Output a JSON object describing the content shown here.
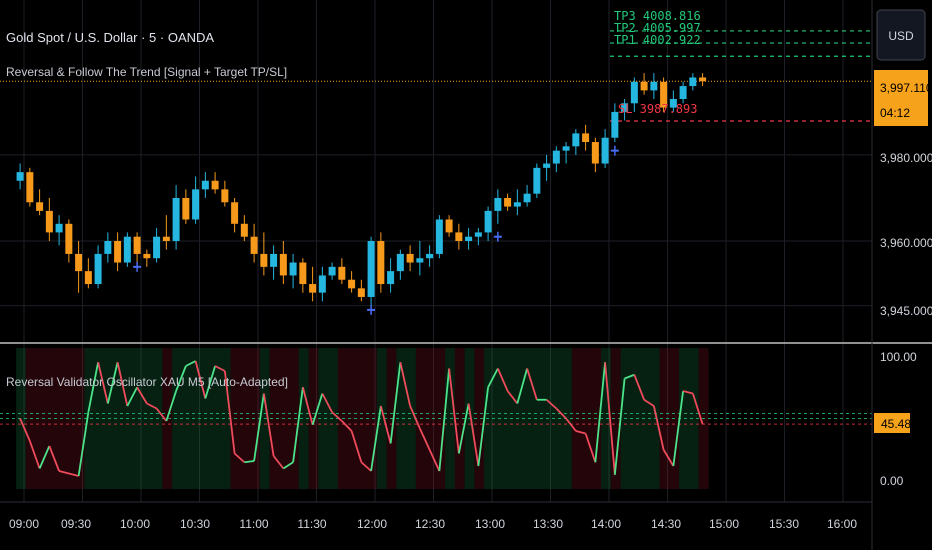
{
  "header": {
    "symbol_title": "Gold Spot / U.S. Dollar · 5 · OANDA",
    "indicator_title": "Reversal & Follow The Trend [Signal + Target TP/SL]"
  },
  "price_axis": {
    "currency_button": "USD",
    "ticks": [
      "3,980.000",
      "3,960.000",
      "3,945.000"
    ],
    "current_price": "3,997.110",
    "countdown": "04:12"
  },
  "targets": {
    "tp3": "TP3 4008.816",
    "tp2": "TP2 4005.997",
    "tp1": "TP1 4002.922",
    "sl": "SL 3987.893"
  },
  "oscillator": {
    "title": "Reversal Validator Oscillator XAU M5 [Auto-Adapted]",
    "ticks": [
      "100.00",
      "0.00"
    ],
    "current_value": "45.48"
  },
  "time_axis": {
    "labels": [
      "09:00",
      "09:30",
      "10:00",
      "10:30",
      "11:00",
      "11:30",
      "12:00",
      "12:30",
      "13:00",
      "13:30",
      "14:00",
      "14:30",
      "15:00",
      "15:30",
      "16:00"
    ]
  },
  "colors": {
    "bull": "#26b7e0",
    "bear": "#f79a1b",
    "tp": "#22c97a",
    "sl": "#f23645",
    "osc_up": "#4ce38a",
    "osc_down": "#ef4b5c",
    "price_label_bg": "#f7a21b",
    "signal": "#4a6cf7"
  },
  "chart_data": {
    "type": "candlestick",
    "interval": "5m",
    "price_ylim": [
      3937,
      4016
    ],
    "candles": [
      {
        "t": "08:58",
        "o": 3974,
        "h": 3978,
        "l": 3972,
        "c": 3976
      },
      {
        "t": "09:03",
        "o": 3976,
        "h": 3977,
        "l": 3968,
        "c": 3969
      },
      {
        "t": "09:08",
        "o": 3969,
        "h": 3972,
        "l": 3966,
        "c": 3967
      },
      {
        "t": "09:13",
        "o": 3967,
        "h": 3970,
        "l": 3960,
        "c": 3962
      },
      {
        "t": "09:18",
        "o": 3962,
        "h": 3966,
        "l": 3959,
        "c": 3964
      },
      {
        "t": "09:23",
        "o": 3964,
        "h": 3965,
        "l": 3955,
        "c": 3957
      },
      {
        "t": "09:28",
        "o": 3957,
        "h": 3960,
        "l": 3948,
        "c": 3953
      },
      {
        "t": "09:33",
        "o": 3953,
        "h": 3956,
        "l": 3949,
        "c": 3950
      },
      {
        "t": "09:38",
        "o": 3950,
        "h": 3959,
        "l": 3949,
        "c": 3957
      },
      {
        "t": "09:43",
        "o": 3957,
        "h": 3962,
        "l": 3955,
        "c": 3960
      },
      {
        "t": "09:48",
        "o": 3960,
        "h": 3962,
        "l": 3953,
        "c": 3955
      },
      {
        "t": "09:53",
        "o": 3955,
        "h": 3962,
        "l": 3954,
        "c": 3961
      },
      {
        "t": "09:58",
        "o": 3961,
        "h": 3962,
        "l": 3954,
        "c": 3957
      },
      {
        "t": "10:03",
        "o": 3957,
        "h": 3958,
        "l": 3954,
        "c": 3956
      },
      {
        "t": "10:08",
        "o": 3956,
        "h": 3963,
        "l": 3955,
        "c": 3961
      },
      {
        "t": "10:13",
        "o": 3961,
        "h": 3966,
        "l": 3958,
        "c": 3960
      },
      {
        "t": "10:18",
        "o": 3960,
        "h": 3973,
        "l": 3958,
        "c": 3970
      },
      {
        "t": "10:23",
        "o": 3970,
        "h": 3972,
        "l": 3964,
        "c": 3965
      },
      {
        "t": "10:28",
        "o": 3965,
        "h": 3975,
        "l": 3964,
        "c": 3972
      },
      {
        "t": "10:33",
        "o": 3972,
        "h": 3976,
        "l": 3970,
        "c": 3974
      },
      {
        "t": "10:38",
        "o": 3974,
        "h": 3976,
        "l": 3971,
        "c": 3972
      },
      {
        "t": "10:43",
        "o": 3972,
        "h": 3974,
        "l": 3968,
        "c": 3969
      },
      {
        "t": "10:48",
        "o": 3969,
        "h": 3970,
        "l": 3962,
        "c": 3964
      },
      {
        "t": "10:53",
        "o": 3964,
        "h": 3966,
        "l": 3960,
        "c": 3961
      },
      {
        "t": "10:58",
        "o": 3961,
        "h": 3964,
        "l": 3955,
        "c": 3957
      },
      {
        "t": "11:03",
        "o": 3957,
        "h": 3962,
        "l": 3952,
        "c": 3954
      },
      {
        "t": "11:08",
        "o": 3954,
        "h": 3959,
        "l": 3951,
        "c": 3957
      },
      {
        "t": "11:13",
        "o": 3957,
        "h": 3960,
        "l": 3950,
        "c": 3952
      },
      {
        "t": "11:18",
        "o": 3952,
        "h": 3957,
        "l": 3949,
        "c": 3955
      },
      {
        "t": "11:23",
        "o": 3955,
        "h": 3956,
        "l": 3948,
        "c": 3950
      },
      {
        "t": "11:28",
        "o": 3950,
        "h": 3954,
        "l": 3946,
        "c": 3948
      },
      {
        "t": "11:33",
        "o": 3948,
        "h": 3954,
        "l": 3946,
        "c": 3952
      },
      {
        "t": "11:38",
        "o": 3952,
        "h": 3955,
        "l": 3951,
        "c": 3954
      },
      {
        "t": "11:43",
        "o": 3954,
        "h": 3956,
        "l": 3950,
        "c": 3951
      },
      {
        "t": "11:48",
        "o": 3951,
        "h": 3953,
        "l": 3948,
        "c": 3949
      },
      {
        "t": "11:53",
        "o": 3949,
        "h": 3951,
        "l": 3946,
        "c": 3947
      },
      {
        "t": "11:58",
        "o": 3947,
        "h": 3961,
        "l": 3945,
        "c": 3960
      },
      {
        "t": "12:03",
        "o": 3960,
        "h": 3962,
        "l": 3948,
        "c": 3950
      },
      {
        "t": "12:08",
        "o": 3950,
        "h": 3956,
        "l": 3948,
        "c": 3953
      },
      {
        "t": "12:13",
        "o": 3953,
        "h": 3958,
        "l": 3951,
        "c": 3957
      },
      {
        "t": "12:18",
        "o": 3957,
        "h": 3959,
        "l": 3953,
        "c": 3955
      },
      {
        "t": "12:23",
        "o": 3955,
        "h": 3960,
        "l": 3952,
        "c": 3956
      },
      {
        "t": "12:28",
        "o": 3956,
        "h": 3959,
        "l": 3954,
        "c": 3957
      },
      {
        "t": "12:33",
        "o": 3957,
        "h": 3966,
        "l": 3956,
        "c": 3965
      },
      {
        "t": "12:38",
        "o": 3965,
        "h": 3966,
        "l": 3961,
        "c": 3962
      },
      {
        "t": "12:43",
        "o": 3962,
        "h": 3964,
        "l": 3958,
        "c": 3960
      },
      {
        "t": "12:48",
        "o": 3960,
        "h": 3963,
        "l": 3958,
        "c": 3961
      },
      {
        "t": "12:53",
        "o": 3961,
        "h": 3963,
        "l": 3959,
        "c": 3962
      },
      {
        "t": "12:58",
        "o": 3962,
        "h": 3968,
        "l": 3960,
        "c": 3967
      },
      {
        "t": "13:03",
        "o": 3967,
        "h": 3972,
        "l": 3964,
        "c": 3970
      },
      {
        "t": "13:08",
        "o": 3970,
        "h": 3971,
        "l": 3967,
        "c": 3968
      },
      {
        "t": "13:13",
        "o": 3968,
        "h": 3972,
        "l": 3966,
        "c": 3969
      },
      {
        "t": "13:18",
        "o": 3969,
        "h": 3973,
        "l": 3968,
        "c": 3971
      },
      {
        "t": "13:23",
        "o": 3971,
        "h": 3978,
        "l": 3970,
        "c": 3977
      },
      {
        "t": "13:28",
        "o": 3977,
        "h": 3980,
        "l": 3974,
        "c": 3978
      },
      {
        "t": "13:33",
        "o": 3978,
        "h": 3982,
        "l": 3976,
        "c": 3981
      },
      {
        "t": "13:38",
        "o": 3981,
        "h": 3983,
        "l": 3978,
        "c": 3982
      },
      {
        "t": "13:43",
        "o": 3982,
        "h": 3986,
        "l": 3980,
        "c": 3985
      },
      {
        "t": "13:48",
        "o": 3985,
        "h": 3987,
        "l": 3981,
        "c": 3983
      },
      {
        "t": "13:53",
        "o": 3983,
        "h": 3984,
        "l": 3976,
        "c": 3978
      },
      {
        "t": "13:58",
        "o": 3978,
        "h": 3986,
        "l": 3977,
        "c": 3984
      },
      {
        "t": "14:03",
        "o": 3984,
        "h": 3992,
        "l": 3983,
        "c": 3990
      },
      {
        "t": "14:08",
        "o": 3990,
        "h": 3993,
        "l": 3988,
        "c": 3992
      },
      {
        "t": "14:13",
        "o": 3992,
        "h": 3998,
        "l": 3990,
        "c": 3997
      },
      {
        "t": "14:18",
        "o": 3997,
        "h": 3999,
        "l": 3994,
        "c": 3995
      },
      {
        "t": "14:23",
        "o": 3995,
        "h": 3999,
        "l": 3993,
        "c": 3997
      },
      {
        "t": "14:28",
        "o": 3997,
        "h": 3998,
        "l": 3990,
        "c": 3991
      },
      {
        "t": "14:33",
        "o": 3991,
        "h": 3995,
        "l": 3990,
        "c": 3993
      },
      {
        "t": "14:38",
        "o": 3993,
        "h": 3997,
        "l": 3992,
        "c": 3996
      },
      {
        "t": "14:43",
        "o": 3996,
        "h": 3999,
        "l": 3995,
        "c": 3998
      },
      {
        "t": "14:48",
        "o": 3998,
        "h": 3999,
        "l": 3996,
        "c": 3997.11
      }
    ],
    "signal_markers": [
      {
        "t": "09:58",
        "price": 3954
      },
      {
        "t": "11:58",
        "price": 3944
      },
      {
        "t": "13:03",
        "price": 3961
      },
      {
        "t": "14:03",
        "price": 3981
      }
    ],
    "horizontal_levels": [
      {
        "label": "TP3",
        "price": 4008.816
      },
      {
        "label": "TP2",
        "price": 4005.997
      },
      {
        "label": "TP1",
        "price": 4002.922
      },
      {
        "label": "SL",
        "price": 3987.893
      },
      {
        "label": "current",
        "price": 3997.11
      }
    ],
    "oscillator": {
      "ylim": [
        0,
        100
      ],
      "levels": [
        45.48,
        50,
        54
      ],
      "values": [
        {
          "t": "08:58",
          "v": 50
        },
        {
          "t": "09:03",
          "v": 32
        },
        {
          "t": "09:08",
          "v": 10
        },
        {
          "t": "09:13",
          "v": 28
        },
        {
          "t": "09:18",
          "v": 8
        },
        {
          "t": "09:23",
          "v": 6
        },
        {
          "t": "09:28",
          "v": 4
        },
        {
          "t": "09:33",
          "v": 55
        },
        {
          "t": "09:38",
          "v": 95
        },
        {
          "t": "09:43",
          "v": 62
        },
        {
          "t": "09:48",
          "v": 95
        },
        {
          "t": "09:53",
          "v": 60
        },
        {
          "t": "09:58",
          "v": 75
        },
        {
          "t": "10:03",
          "v": 62
        },
        {
          "t": "10:08",
          "v": 58
        },
        {
          "t": "10:13",
          "v": 48
        },
        {
          "t": "10:18",
          "v": 72
        },
        {
          "t": "10:23",
          "v": 92
        },
        {
          "t": "10:28",
          "v": 96
        },
        {
          "t": "10:33",
          "v": 66
        },
        {
          "t": "10:38",
          "v": 92
        },
        {
          "t": "10:43",
          "v": 88
        },
        {
          "t": "10:48",
          "v": 22
        },
        {
          "t": "10:53",
          "v": 15
        },
        {
          "t": "10:58",
          "v": 16
        },
        {
          "t": "11:03",
          "v": 70
        },
        {
          "t": "11:08",
          "v": 20
        },
        {
          "t": "11:13",
          "v": 10
        },
        {
          "t": "11:18",
          "v": 15
        },
        {
          "t": "11:23",
          "v": 75
        },
        {
          "t": "11:28",
          "v": 45
        },
        {
          "t": "11:33",
          "v": 70
        },
        {
          "t": "11:38",
          "v": 55
        },
        {
          "t": "11:43",
          "v": 48
        },
        {
          "t": "11:48",
          "v": 40
        },
        {
          "t": "11:53",
          "v": 15
        },
        {
          "t": "11:58",
          "v": 8
        },
        {
          "t": "12:03",
          "v": 60
        },
        {
          "t": "12:08",
          "v": 30
        },
        {
          "t": "12:13",
          "v": 95
        },
        {
          "t": "12:18",
          "v": 60
        },
        {
          "t": "12:23",
          "v": 42
        },
        {
          "t": "12:28",
          "v": 25
        },
        {
          "t": "12:33",
          "v": 8
        },
        {
          "t": "12:38",
          "v": 90
        },
        {
          "t": "12:43",
          "v": 22
        },
        {
          "t": "12:48",
          "v": 62
        },
        {
          "t": "12:53",
          "v": 12
        },
        {
          "t": "12:58",
          "v": 75
        },
        {
          "t": "13:03",
          "v": 90
        },
        {
          "t": "13:08",
          "v": 72
        },
        {
          "t": "13:13",
          "v": 62
        },
        {
          "t": "13:18",
          "v": 90
        },
        {
          "t": "13:23",
          "v": 65
        },
        {
          "t": "13:28",
          "v": 65
        },
        {
          "t": "13:33",
          "v": 58
        },
        {
          "t": "13:38",
          "v": 50
        },
        {
          "t": "13:43",
          "v": 40
        },
        {
          "t": "13:48",
          "v": 38
        },
        {
          "t": "13:53",
          "v": 15
        },
        {
          "t": "13:58",
          "v": 95
        },
        {
          "t": "14:03",
          "v": 5
        },
        {
          "t": "14:08",
          "v": 82
        },
        {
          "t": "14:13",
          "v": 85
        },
        {
          "t": "14:18",
          "v": 65
        },
        {
          "t": "14:23",
          "v": 60
        },
        {
          "t": "14:28",
          "v": 25
        },
        {
          "t": "14:33",
          "v": 12
        },
        {
          "t": "14:38",
          "v": 72
        },
        {
          "t": "14:43",
          "v": 70
        },
        {
          "t": "14:48",
          "v": 45.48
        }
      ]
    }
  }
}
